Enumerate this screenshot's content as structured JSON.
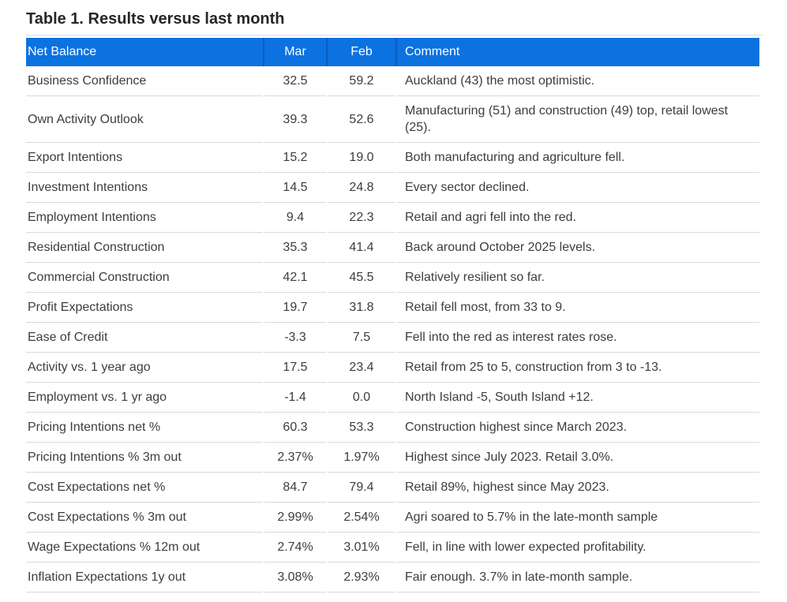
{
  "title": "Table 1. Results versus last month",
  "colors": {
    "header_bg": "#0b72e0",
    "header_divider": "#0a5cbe",
    "header_text": "#ffffff",
    "row_divider": "#d9d9d9",
    "body_text": "#3d3d3d",
    "title_text": "#262626",
    "page_bg": "#ffffff"
  },
  "table": {
    "headers": [
      "Net Balance",
      "Mar",
      "Feb",
      "Comment"
    ],
    "rows": [
      {
        "label": "Business Confidence",
        "mar": "32.5",
        "feb": "59.2",
        "comment": "Auckland (43) the most optimistic."
      },
      {
        "label": "Own Activity Outlook",
        "mar": "39.3",
        "feb": "52.6",
        "comment": "Manufacturing (51) and construction (49) top, retail lowest (25)."
      },
      {
        "label": "Export Intentions",
        "mar": "15.2",
        "feb": "19.0",
        "comment": "Both manufacturing and agriculture fell."
      },
      {
        "label": "Investment Intentions",
        "mar": "14.5",
        "feb": "24.8",
        "comment": "Every sector declined."
      },
      {
        "label": "Employment Intentions",
        "mar": "9.4",
        "feb": "22.3",
        "comment": "Retail and agri fell into the red."
      },
      {
        "label": "Residential Construction",
        "mar": "35.3",
        "feb": "41.4",
        "comment": "Back around October 2025 levels."
      },
      {
        "label": "Commercial Construction",
        "mar": "42.1",
        "feb": "45.5",
        "comment": "Relatively resilient so far."
      },
      {
        "label": "Profit Expectations",
        "mar": "19.7",
        "feb": "31.8",
        "comment": "Retail fell most, from 33 to 9."
      },
      {
        "label": "Ease of Credit",
        "mar": "-3.3",
        "feb": "7.5",
        "comment": "Fell into the red as interest rates rose."
      },
      {
        "label": "Activity vs. 1 year ago",
        "mar": "17.5",
        "feb": "23.4",
        "comment": "Retail from 25 to 5, construction from 3 to -13."
      },
      {
        "label": "Employment vs. 1 yr ago",
        "mar": "-1.4",
        "feb": "0.0",
        "comment": "North Island -5, South Island +12."
      },
      {
        "label": "Pricing Intentions net %",
        "mar": "60.3",
        "feb": "53.3",
        "comment": "Construction highest since March 2023."
      },
      {
        "label": "Pricing Intentions % 3m out",
        "mar": "2.37%",
        "feb": "1.97%",
        "comment": "Highest since July 2023. Retail 3.0%."
      },
      {
        "label": "Cost Expectations net %",
        "mar": "84.7",
        "feb": "79.4",
        "comment": "Retail 89%, highest since May 2023."
      },
      {
        "label": "Cost Expectations % 3m out",
        "mar": "2.99%",
        "feb": "2.54%",
        "comment": "Agri soared to 5.7% in the late-month sample"
      },
      {
        "label": "Wage Expectations % 12m out",
        "mar": "2.74%",
        "feb": "3.01%",
        "comment": "Fell, in line with lower expected profitability."
      },
      {
        "label": "Inflation Expectations 1y out",
        "mar": "3.08%",
        "feb": "2.93%",
        "comment": "Fair enough. 3.7% in late-month sample."
      }
    ]
  }
}
